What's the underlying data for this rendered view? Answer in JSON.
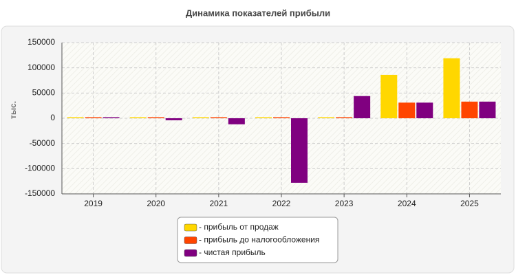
{
  "chart_data": {
    "type": "bar",
    "title": "Динамика показателей прибыли",
    "y_label": "тыс.",
    "categories": [
      "2019",
      "2020",
      "2021",
      "2022",
      "2023",
      "2024",
      "2025"
    ],
    "series": [
      {
        "name": "- прибыль от продаж",
        "color": "#ffd700",
        "values": [
          2000,
          2000,
          2000,
          2000,
          2000,
          86000,
          119000
        ]
      },
      {
        "name": "- прибыль до налогообложения",
        "color": "#ff4500",
        "values": [
          2000,
          2000,
          2000,
          2000,
          2000,
          31000,
          33000
        ]
      },
      {
        "name": "- чистая прибыль",
        "color": "#800080",
        "values": [
          2000,
          -4000,
          -12000,
          -128000,
          44000,
          31000,
          33000
        ]
      }
    ],
    "ylim": [
      -150000,
      150000
    ],
    "yticks": [
      -150000,
      -100000,
      -50000,
      0,
      50000,
      100000,
      150000
    ],
    "grid": true,
    "legend": "bottom"
  }
}
